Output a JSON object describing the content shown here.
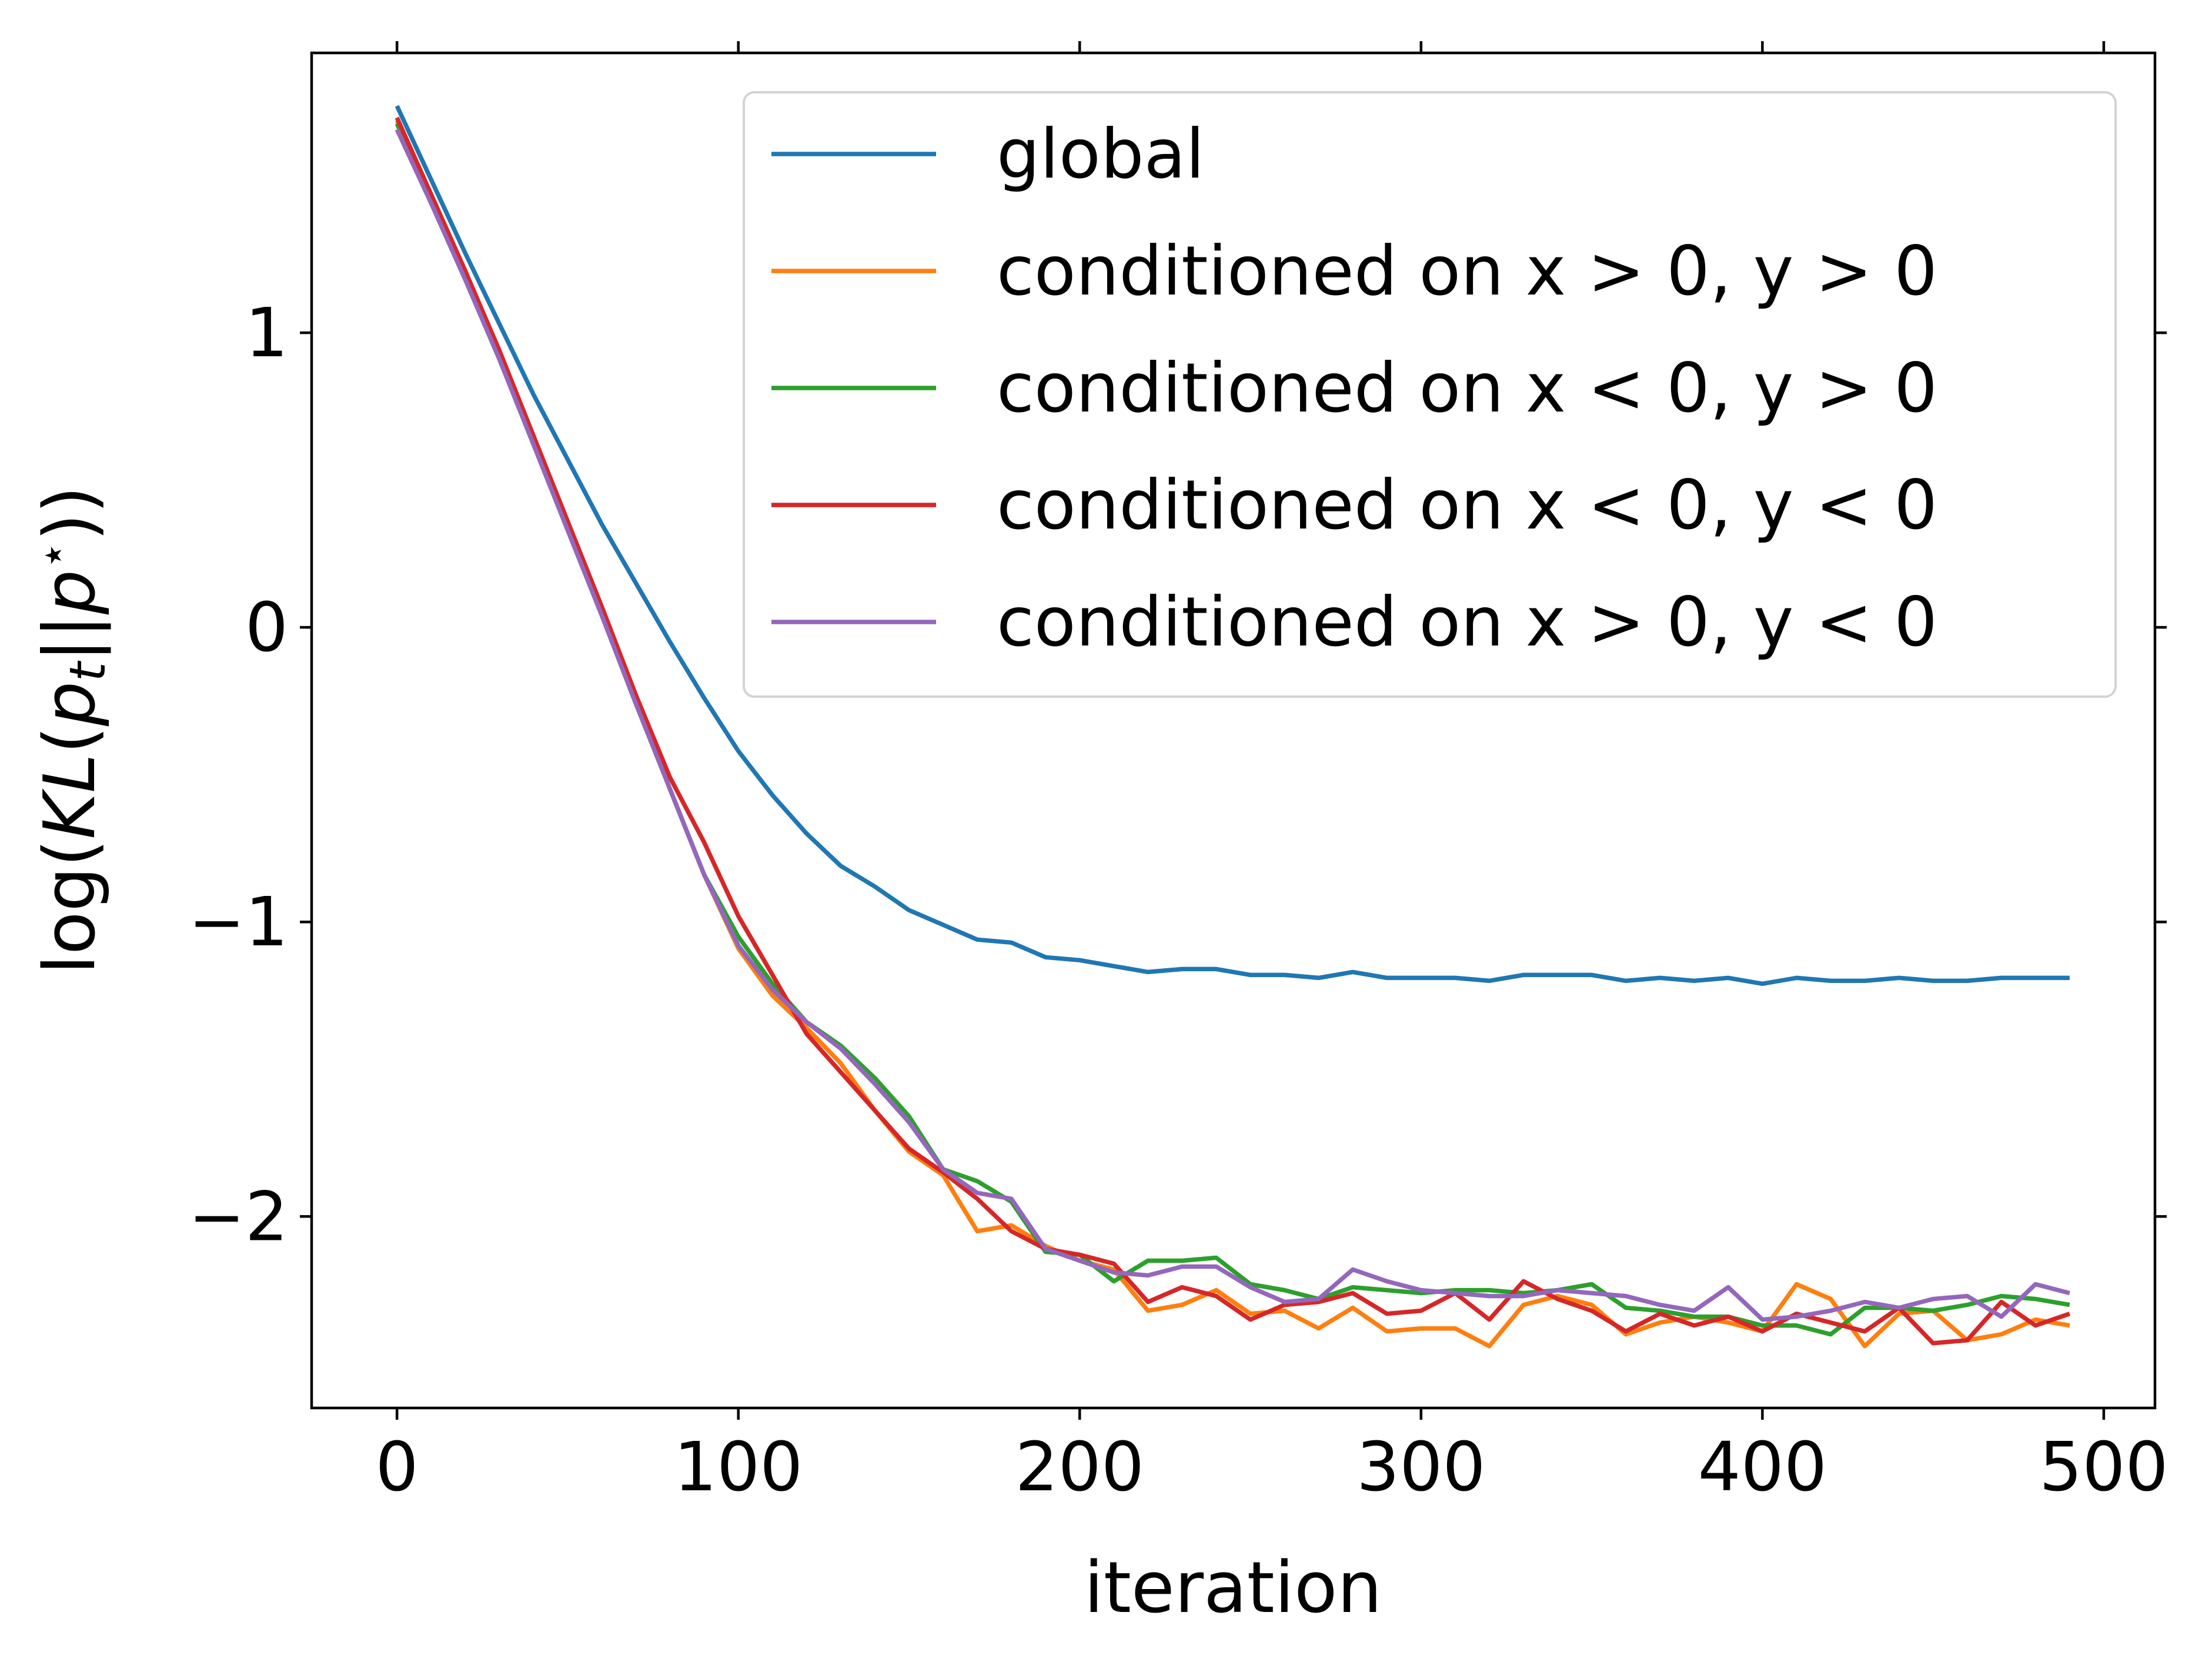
{
  "chart_data": {
    "type": "line",
    "title": "",
    "xlabel": "iteration",
    "ylabel": "log(KL(p_t||p*))",
    "ylabel_parts": {
      "prefix": "log(",
      "kl": "KL",
      "open": "(",
      "p1": "p",
      "sub": "t",
      "bars": "||",
      "p2": "p",
      "sup": "⋆",
      "close": "))"
    },
    "xlim": [
      -25,
      515
    ],
    "ylim": [
      -2.65,
      1.95
    ],
    "xticks": [
      0,
      100,
      200,
      300,
      400,
      500
    ],
    "xtick_labels": [
      "0",
      "100",
      "200",
      "300",
      "400",
      "500"
    ],
    "yticks": [
      1,
      0,
      -1,
      -2
    ],
    "ytick_labels": [
      "1",
      "0",
      "−1",
      "−2"
    ],
    "grid": false,
    "legend_position": "top-right",
    "x": [
      0,
      10,
      20,
      30,
      40,
      50,
      60,
      70,
      80,
      90,
      100,
      110,
      120,
      130,
      140,
      150,
      160,
      170,
      180,
      190,
      200,
      210,
      220,
      230,
      240,
      250,
      260,
      270,
      280,
      290,
      300,
      310,
      320,
      330,
      340,
      350,
      360,
      370,
      380,
      390,
      400,
      410,
      420,
      430,
      440,
      450,
      460,
      470,
      480,
      490
    ],
    "series": [
      {
        "name": "global",
        "color": "#1f77b4",
        "values": [
          1.77,
          1.52,
          1.27,
          1.03,
          0.79,
          0.57,
          0.35,
          0.15,
          -0.05,
          -0.24,
          -0.42,
          -0.57,
          -0.7,
          -0.81,
          -0.88,
          -0.96,
          -1.01,
          -1.06,
          -1.07,
          -1.12,
          -1.13,
          -1.15,
          -1.17,
          -1.16,
          -1.16,
          -1.18,
          -1.18,
          -1.19,
          -1.17,
          -1.19,
          -1.19,
          -1.19,
          -1.2,
          -1.18,
          -1.18,
          -1.18,
          -1.2,
          -1.19,
          -1.2,
          -1.19,
          -1.21,
          -1.19,
          -1.2,
          -1.2,
          -1.19,
          -1.2,
          -1.2,
          -1.19,
          -1.19,
          -1.19
        ]
      },
      {
        "name": "conditioned on x > 0, y > 0",
        "color": "#ff7f0e",
        "values": [
          1.72,
          1.46,
          1.2,
          0.93,
          0.64,
          0.35,
          0.06,
          -0.24,
          -0.55,
          -0.84,
          -1.09,
          -1.25,
          -1.36,
          -1.48,
          -1.64,
          -1.78,
          -1.86,
          -2.05,
          -2.03,
          -2.1,
          -2.15,
          -2.18,
          -2.32,
          -2.3,
          -2.25,
          -2.33,
          -2.32,
          -2.38,
          -2.31,
          -2.39,
          -2.38,
          -2.38,
          -2.44,
          -2.3,
          -2.27,
          -2.3,
          -2.4,
          -2.36,
          -2.34,
          -2.36,
          -2.39,
          -2.23,
          -2.28,
          -2.44,
          -2.33,
          -2.32,
          -2.42,
          -2.4,
          -2.35,
          -2.37
        ]
      },
      {
        "name": "conditioned on x < 0, y > 0",
        "color": "#2ca02c",
        "values": [
          1.71,
          1.45,
          1.19,
          0.92,
          0.63,
          0.34,
          0.05,
          -0.25,
          -0.55,
          -0.84,
          -1.05,
          -1.21,
          -1.34,
          -1.42,
          -1.53,
          -1.66,
          -1.84,
          -1.88,
          -1.95,
          -2.12,
          -2.13,
          -2.22,
          -2.15,
          -2.15,
          -2.14,
          -2.23,
          -2.25,
          -2.28,
          -2.24,
          -2.25,
          -2.26,
          -2.25,
          -2.25,
          -2.26,
          -2.25,
          -2.23,
          -2.31,
          -2.32,
          -2.34,
          -2.34,
          -2.37,
          -2.37,
          -2.4,
          -2.31,
          -2.31,
          -2.32,
          -2.3,
          -2.27,
          -2.28,
          -2.3
        ]
      },
      {
        "name": "conditioned on x < 0, y < 0",
        "color": "#d62728",
        "values": [
          1.73,
          1.47,
          1.21,
          0.94,
          0.65,
          0.36,
          0.07,
          -0.23,
          -0.51,
          -0.73,
          -0.98,
          -1.18,
          -1.38,
          -1.51,
          -1.64,
          -1.77,
          -1.85,
          -1.94,
          -2.05,
          -2.11,
          -2.13,
          -2.16,
          -2.29,
          -2.24,
          -2.27,
          -2.35,
          -2.3,
          -2.29,
          -2.26,
          -2.33,
          -2.32,
          -2.26,
          -2.35,
          -2.22,
          -2.28,
          -2.32,
          -2.39,
          -2.33,
          -2.37,
          -2.34,
          -2.39,
          -2.33,
          -2.36,
          -2.39,
          -2.31,
          -2.43,
          -2.42,
          -2.29,
          -2.37,
          -2.33
        ]
      },
      {
        "name": "conditioned on x > 0, y < 0",
        "color": "#9467bd",
        "values": [
          1.69,
          1.44,
          1.18,
          0.91,
          0.62,
          0.33,
          0.04,
          -0.26,
          -0.55,
          -0.84,
          -1.08,
          -1.23,
          -1.34,
          -1.43,
          -1.55,
          -1.68,
          -1.84,
          -1.92,
          -1.94,
          -2.11,
          -2.15,
          -2.19,
          -2.2,
          -2.17,
          -2.17,
          -2.24,
          -2.29,
          -2.28,
          -2.18,
          -2.22,
          -2.25,
          -2.26,
          -2.27,
          -2.27,
          -2.25,
          -2.26,
          -2.27,
          -2.3,
          -2.32,
          -2.24,
          -2.35,
          -2.34,
          -2.32,
          -2.29,
          -2.31,
          -2.28,
          -2.27,
          -2.34,
          -2.23,
          -2.26
        ]
      }
    ]
  }
}
